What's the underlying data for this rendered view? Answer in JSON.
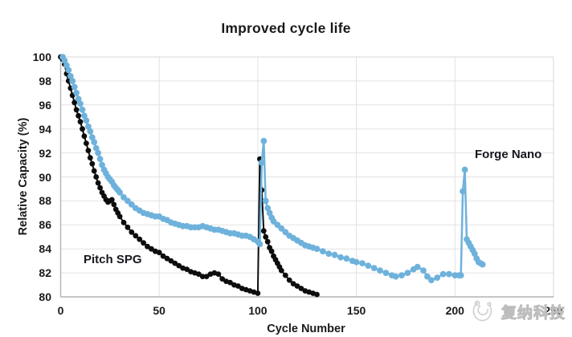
{
  "title": "Improved cycle life",
  "watermark": {
    "text": "复纳科技",
    "logo": "funa-swirl-logo"
  },
  "colors": {
    "pitch_spg": "#0d0d0d",
    "forge_nano": "#6eb2dc",
    "grid": "#e2e2e2",
    "axis": "#b3b3b3",
    "border": "#d9d9d9",
    "text": "#1a1a1a"
  },
  "chart_data": {
    "type": "line",
    "title": "Improved cycle life",
    "xlabel": "Cycle Number",
    "ylabel": "Relative Capacity (%)",
    "xlim": [
      0,
      250
    ],
    "ylim": [
      80,
      100
    ],
    "x_ticks": [
      0,
      50,
      100,
      150,
      200,
      250
    ],
    "y_ticks": [
      80,
      82,
      84,
      86,
      88,
      90,
      92,
      94,
      96,
      98,
      100
    ],
    "grid": true,
    "legend_position": "inline-labels",
    "series": [
      {
        "name": "Pitch SPG",
        "color": "#0d0d0d",
        "marker_radius": 3.4,
        "line_width": 2,
        "points": [
          [
            0,
            100
          ],
          [
            1,
            99.8
          ],
          [
            2,
            99.4
          ],
          [
            3,
            98.6
          ],
          [
            4,
            98.0
          ],
          [
            5,
            97.4
          ],
          [
            6,
            96.8
          ],
          [
            7,
            96.2
          ],
          [
            8,
            95.6
          ],
          [
            9,
            95.1
          ],
          [
            10,
            94.6
          ],
          [
            11,
            94.0
          ],
          [
            12,
            93.4
          ],
          [
            13,
            92.8
          ],
          [
            14,
            92.2
          ],
          [
            15,
            91.6
          ],
          [
            16,
            91.1
          ],
          [
            17,
            90.5
          ],
          [
            18,
            90.0
          ],
          [
            19,
            89.5
          ],
          [
            20,
            89.1
          ],
          [
            21,
            88.7
          ],
          [
            22,
            88.4
          ],
          [
            23,
            88.1
          ],
          [
            24,
            87.9
          ],
          [
            25,
            88.0
          ],
          [
            26,
            88.1
          ],
          [
            27,
            87.7
          ],
          [
            28,
            87.3
          ],
          [
            29,
            87.0
          ],
          [
            30,
            86.7
          ],
          [
            32,
            86.2
          ],
          [
            34,
            85.8
          ],
          [
            36,
            85.4
          ],
          [
            38,
            85.1
          ],
          [
            40,
            84.8
          ],
          [
            42,
            84.5
          ],
          [
            44,
            84.2
          ],
          [
            46,
            84.0
          ],
          [
            48,
            83.8
          ],
          [
            50,
            83.7
          ],
          [
            52,
            83.4
          ],
          [
            54,
            83.2
          ],
          [
            56,
            83.0
          ],
          [
            58,
            82.8
          ],
          [
            60,
            82.6
          ],
          [
            62,
            82.4
          ],
          [
            64,
            82.3
          ],
          [
            66,
            82.1
          ],
          [
            68,
            82.0
          ],
          [
            70,
            81.9
          ],
          [
            72,
            81.7
          ],
          [
            74,
            81.7
          ],
          [
            76,
            81.9
          ],
          [
            78,
            82.0
          ],
          [
            80,
            81.9
          ],
          [
            82,
            81.5
          ],
          [
            84,
            81.3
          ],
          [
            86,
            81.2
          ],
          [
            88,
            81.0
          ],
          [
            90,
            80.9
          ],
          [
            92,
            80.7
          ],
          [
            94,
            80.6
          ],
          [
            96,
            80.5
          ],
          [
            98,
            80.4
          ],
          [
            100,
            80.3
          ],
          [
            101,
            91.5
          ],
          [
            102,
            88.9
          ],
          [
            103,
            85.5
          ],
          [
            104,
            85.0
          ],
          [
            105,
            84.6
          ],
          [
            106,
            84.1
          ],
          [
            107,
            83.8
          ],
          [
            108,
            83.4
          ],
          [
            109,
            83.1
          ],
          [
            110,
            82.8
          ],
          [
            111,
            82.5
          ],
          [
            112,
            82.2
          ],
          [
            114,
            81.8
          ],
          [
            116,
            81.4
          ],
          [
            118,
            81.1
          ],
          [
            120,
            80.9
          ],
          [
            122,
            80.7
          ],
          [
            124,
            80.5
          ],
          [
            126,
            80.4
          ],
          [
            128,
            80.3
          ],
          [
            130,
            80.2
          ]
        ]
      },
      {
        "name": "Forge Nano",
        "color": "#6eb2dc",
        "marker_radius": 3.9,
        "line_width": 2.5,
        "points": [
          [
            1,
            100
          ],
          [
            2,
            99.7
          ],
          [
            3,
            99.3
          ],
          [
            4,
            98.9
          ],
          [
            5,
            98.4
          ],
          [
            6,
            98.0
          ],
          [
            7,
            97.5
          ],
          [
            8,
            97.0
          ],
          [
            9,
            96.5
          ],
          [
            10,
            96.1
          ],
          [
            11,
            95.6
          ],
          [
            12,
            95.1
          ],
          [
            13,
            94.7
          ],
          [
            14,
            94.2
          ],
          [
            15,
            93.8
          ],
          [
            16,
            93.3
          ],
          [
            17,
            92.9
          ],
          [
            18,
            92.4
          ],
          [
            19,
            92.0
          ],
          [
            20,
            91.5
          ],
          [
            21,
            91.0
          ],
          [
            22,
            90.6
          ],
          [
            23,
            90.3
          ],
          [
            24,
            90.0
          ],
          [
            25,
            89.8
          ],
          [
            26,
            89.6
          ],
          [
            27,
            89.3
          ],
          [
            28,
            89.1
          ],
          [
            29,
            88.9
          ],
          [
            30,
            88.7
          ],
          [
            32,
            88.3
          ],
          [
            34,
            88.0
          ],
          [
            36,
            87.7
          ],
          [
            38,
            87.4
          ],
          [
            40,
            87.2
          ],
          [
            42,
            87.0
          ],
          [
            44,
            86.9
          ],
          [
            46,
            86.8
          ],
          [
            48,
            86.7
          ],
          [
            50,
            86.7
          ],
          [
            52,
            86.5
          ],
          [
            54,
            86.4
          ],
          [
            56,
            86.2
          ],
          [
            58,
            86.1
          ],
          [
            60,
            86.0
          ],
          [
            62,
            85.9
          ],
          [
            64,
            85.9
          ],
          [
            66,
            85.8
          ],
          [
            68,
            85.8
          ],
          [
            70,
            85.8
          ],
          [
            72,
            85.9
          ],
          [
            74,
            85.8
          ],
          [
            76,
            85.7
          ],
          [
            78,
            85.6
          ],
          [
            80,
            85.6
          ],
          [
            82,
            85.5
          ],
          [
            84,
            85.4
          ],
          [
            86,
            85.3
          ],
          [
            88,
            85.3
          ],
          [
            90,
            85.2
          ],
          [
            92,
            85.1
          ],
          [
            94,
            85.1
          ],
          [
            96,
            85.0
          ],
          [
            98,
            84.8
          ],
          [
            100,
            84.6
          ],
          [
            101,
            84.4
          ],
          [
            102,
            91.2
          ],
          [
            103,
            93.0
          ],
          [
            104,
            88.0
          ],
          [
            105,
            87.4
          ],
          [
            106,
            87.0
          ],
          [
            107,
            86.6
          ],
          [
            108,
            86.3
          ],
          [
            110,
            86.0
          ],
          [
            112,
            85.7
          ],
          [
            114,
            85.4
          ],
          [
            116,
            85.1
          ],
          [
            118,
            84.9
          ],
          [
            120,
            84.7
          ],
          [
            122,
            84.5
          ],
          [
            124,
            84.3
          ],
          [
            126,
            84.2
          ],
          [
            128,
            84.1
          ],
          [
            130,
            84.0
          ],
          [
            133,
            83.8
          ],
          [
            136,
            83.6
          ],
          [
            139,
            83.5
          ],
          [
            142,
            83.3
          ],
          [
            145,
            83.2
          ],
          [
            148,
            83.0
          ],
          [
            150,
            82.9
          ],
          [
            153,
            82.8
          ],
          [
            156,
            82.6
          ],
          [
            159,
            82.4
          ],
          [
            162,
            82.2
          ],
          [
            165,
            82.0
          ],
          [
            168,
            81.8
          ],
          [
            170,
            81.7
          ],
          [
            173,
            81.8
          ],
          [
            176,
            82.0
          ],
          [
            179,
            82.3
          ],
          [
            181,
            82.5
          ],
          [
            184,
            82.2
          ],
          [
            186,
            81.7
          ],
          [
            188,
            81.4
          ],
          [
            191,
            81.6
          ],
          [
            194,
            81.9
          ],
          [
            197,
            81.9
          ],
          [
            200,
            81.8
          ],
          [
            202,
            81.8
          ],
          [
            203,
            81.8
          ],
          [
            204,
            88.8
          ],
          [
            205,
            90.6
          ],
          [
            206,
            84.8
          ],
          [
            207,
            84.5
          ],
          [
            208,
            84.2
          ],
          [
            209,
            83.9
          ],
          [
            210,
            83.6
          ],
          [
            211,
            83.2
          ],
          [
            212,
            82.9
          ],
          [
            213,
            82.8
          ],
          [
            214,
            82.7
          ]
        ]
      }
    ]
  }
}
